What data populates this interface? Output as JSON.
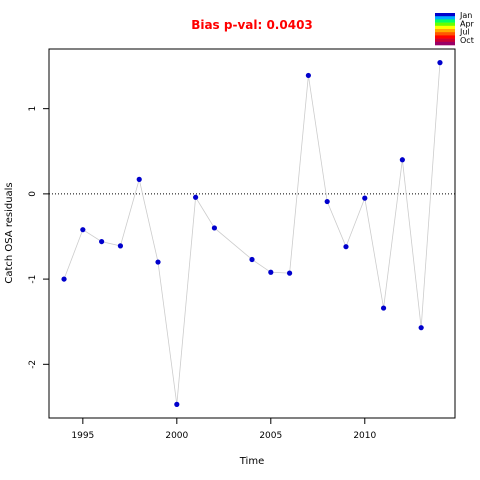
{
  "chart_data": {
    "type": "scatter",
    "title": "Bias p-val: 0.0403",
    "xlabel": "Time",
    "ylabel": "Catch OSA residuals",
    "xlim": [
      1993.2,
      2014.8
    ],
    "ylim": [
      -2.63,
      1.7
    ],
    "xticks": [
      1995,
      2000,
      2005,
      2010
    ],
    "yticks": [
      -2,
      -1,
      0,
      1
    ],
    "reference_line": 0,
    "grid": false,
    "legend_position": "top-right",
    "legend_labels": [
      "Jan",
      "Apr",
      "Jul",
      "Oct"
    ],
    "legend_colors": [
      "#0000cc",
      "#00aaff",
      "#00ff66",
      "#66ff00",
      "#ffff00",
      "#ffaa00",
      "#ff5500",
      "#ff0000",
      "#cc0033",
      "#990066"
    ],
    "point_color": "#0000cc",
    "line_color": "#cccccc",
    "title_color": "#ff0000",
    "series": [
      {
        "x": [
          1994,
          1995,
          1996,
          1997,
          1998,
          1999,
          2000,
          2001,
          2002,
          2004,
          2005,
          2006,
          2007,
          2008,
          2009,
          2010,
          2011,
          2012,
          2013,
          2014
        ],
        "y": [
          -1.0,
          -0.42,
          -0.56,
          -0.61,
          0.17,
          -0.8,
          -2.47,
          -0.04,
          -0.4,
          -0.77,
          -0.92,
          -0.93,
          1.39,
          -0.09,
          -0.62,
          -0.05,
          -1.34,
          0.4,
          -1.57,
          1.54
        ]
      }
    ]
  }
}
